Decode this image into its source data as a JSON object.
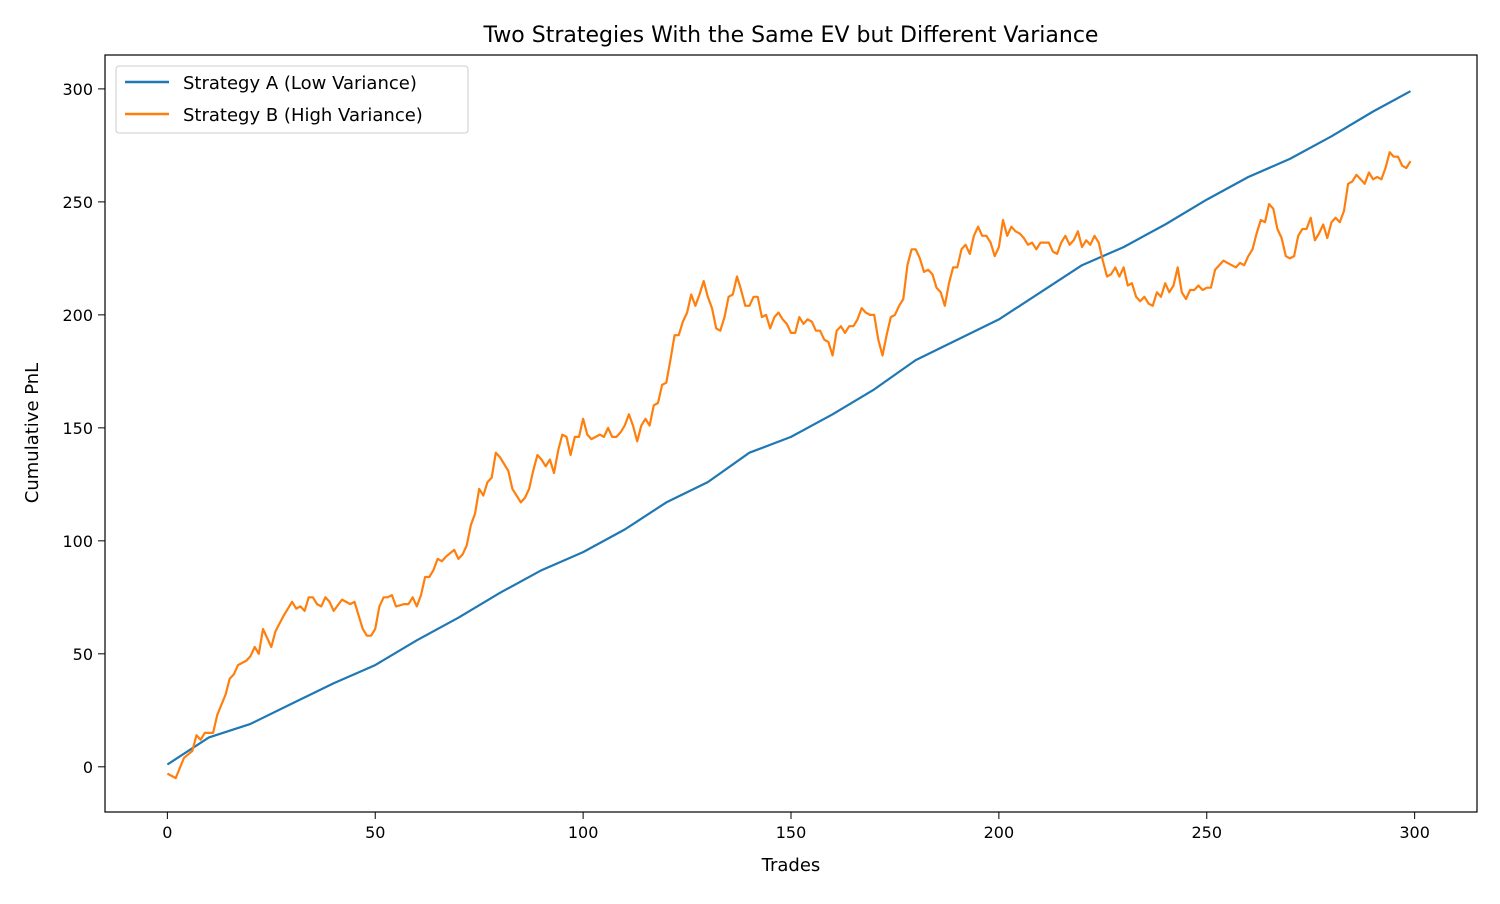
{
  "chart_data": {
    "type": "line",
    "title": "Two Strategies With the Same EV but Different Variance",
    "xlabel": "Trades",
    "ylabel": "Cumulative PnL",
    "xlim": [
      -15,
      315
    ],
    "ylim": [
      -20,
      315
    ],
    "xticks": [
      0,
      50,
      100,
      150,
      200,
      250,
      300
    ],
    "yticks": [
      0,
      50,
      100,
      150,
      200,
      250,
      300
    ],
    "grid": false,
    "legend_position": "top-left",
    "series": [
      {
        "name": "Strategy A (Low Variance)",
        "color": "#1f77b4",
        "x": [
          0,
          10,
          20,
          30,
          40,
          50,
          60,
          70,
          80,
          90,
          100,
          110,
          120,
          130,
          140,
          150,
          160,
          170,
          180,
          190,
          200,
          210,
          220,
          230,
          240,
          250,
          260,
          270,
          280,
          290,
          299
        ],
        "y": [
          1,
          13,
          19,
          28,
          37,
          45,
          56,
          66,
          77,
          87,
          95,
          105,
          117,
          126,
          139,
          146,
          156,
          167,
          180,
          189,
          198,
          210,
          222,
          230,
          240,
          251,
          261,
          269,
          279,
          290,
          299
        ]
      },
      {
        "name": "Strategy B (High Variance)",
        "color": "#ff7f0e",
        "x": [
          0,
          2,
          4,
          6,
          7,
          8,
          9,
          11,
          12,
          14,
          15,
          16,
          17,
          19,
          20,
          21,
          22,
          23,
          25,
          26,
          28,
          30,
          31,
          32,
          33,
          34,
          35,
          36,
          37,
          38,
          39,
          40,
          42,
          44,
          45,
          46,
          47,
          48,
          49,
          50,
          51,
          52,
          53,
          54,
          55,
          57,
          58,
          59,
          60,
          61,
          62,
          63,
          64,
          65,
          66,
          67,
          69,
          70,
          71,
          72,
          73,
          74,
          75,
          76,
          77,
          78,
          79,
          80,
          81,
          82,
          83,
          84,
          85,
          86,
          87,
          88,
          89,
          90,
          91,
          92,
          93,
          94,
          95,
          96,
          97,
          98,
          99,
          100,
          101,
          102,
          104,
          105,
          106,
          107,
          108,
          109,
          110,
          111,
          112,
          113,
          114,
          115,
          116,
          117,
          118,
          119,
          120,
          121,
          122,
          123,
          124,
          125,
          126,
          127,
          128,
          129,
          130,
          131,
          132,
          133,
          134,
          135,
          136,
          137,
          138,
          139,
          140,
          141,
          142,
          143,
          144,
          145,
          146,
          147,
          148,
          149,
          150,
          151,
          152,
          153,
          154,
          155,
          156,
          157,
          158,
          159,
          160,
          161,
          162,
          163,
          164,
          165,
          166,
          167,
          168,
          169,
          170,
          171,
          172,
          173,
          174,
          175,
          176,
          177,
          178,
          179,
          180,
          181,
          182,
          183,
          184,
          185,
          186,
          187,
          188,
          189,
          190,
          191,
          192,
          193,
          194,
          195,
          196,
          197,
          198,
          199,
          200,
          201,
          202,
          203,
          204,
          205,
          206,
          207,
          208,
          209,
          210,
          211,
          212,
          213,
          214,
          215,
          216,
          217,
          218,
          219,
          220,
          221,
          222,
          223,
          224,
          225,
          226,
          227,
          228,
          229,
          230,
          231,
          232,
          233,
          234,
          235,
          236,
          237,
          238,
          239,
          240,
          241,
          242,
          243,
          244,
          245,
          246,
          247,
          248,
          249,
          250,
          251,
          252,
          253,
          254,
          255,
          256,
          257,
          258,
          259,
          260,
          261,
          262,
          263,
          264,
          265,
          266,
          267,
          268,
          269,
          270,
          271,
          272,
          273,
          274,
          275,
          276,
          277,
          278,
          279,
          280,
          281,
          282,
          283,
          284,
          285,
          286,
          287,
          288,
          289,
          290,
          291,
          292,
          293,
          294,
          295,
          296,
          297,
          298,
          299
        ],
        "y": [
          -3,
          -5,
          4,
          7,
          14,
          12,
          15,
          15,
          23,
          32,
          39,
          41,
          45,
          47,
          49,
          53,
          50,
          61,
          53,
          60,
          67,
          73,
          70,
          71,
          69,
          75,
          75,
          72,
          71,
          75,
          73,
          69,
          74,
          72,
          73,
          67,
          61,
          58,
          58,
          61,
          71,
          75,
          75,
          76,
          71,
          72,
          72,
          75,
          71,
          76,
          84,
          84,
          87,
          92,
          91,
          93,
          96,
          92,
          94,
          98,
          107,
          112,
          123,
          120,
          126,
          128,
          139,
          137,
          134,
          131,
          123,
          120,
          117,
          119,
          123,
          131,
          138,
          136,
          133,
          136,
          130,
          140,
          147,
          146,
          138,
          146,
          146,
          154,
          147,
          145,
          147,
          146,
          150,
          146,
          146,
          148,
          151,
          156,
          151,
          144,
          151,
          154,
          151,
          160,
          161,
          169,
          170,
          180,
          191,
          191,
          197,
          201,
          209,
          204,
          209,
          215,
          208,
          203,
          194,
          193,
          199,
          208,
          209,
          217,
          211,
          204,
          204,
          208,
          208,
          199,
          200,
          194,
          199,
          201,
          198,
          196,
          192,
          192,
          199,
          196,
          198,
          197,
          193,
          193,
          189,
          188,
          182,
          193,
          195,
          192,
          195,
          195,
          198,
          203,
          201,
          200,
          200,
          189,
          182,
          191,
          199,
          200,
          204,
          207,
          222,
          229,
          229,
          225,
          219,
          220,
          218,
          212,
          210,
          204,
          214,
          221,
          221,
          229,
          231,
          227,
          235,
          239,
          235,
          235,
          232,
          226,
          230,
          242,
          235,
          239,
          237,
          236,
          234,
          231,
          232,
          229,
          232,
          232,
          232,
          228,
          227,
          232,
          235,
          231,
          233,
          237,
          230,
          233,
          231,
          235,
          232,
          224,
          217,
          218,
          221,
          217,
          221,
          213,
          214,
          208,
          206,
          208,
          205,
          204,
          210,
          208,
          214,
          210,
          213,
          221,
          210,
          207,
          211,
          211,
          213,
          211,
          212,
          212,
          220,
          222,
          224,
          223,
          222,
          221,
          223,
          222,
          226,
          229,
          236,
          242,
          241,
          249,
          247,
          238,
          234,
          226,
          225,
          226,
          235,
          238,
          238,
          243,
          233,
          236,
          240,
          234,
          241,
          243,
          241,
          246,
          258,
          259,
          262,
          260,
          258,
          263,
          260,
          261,
          260,
          265,
          272,
          270,
          270,
          266,
          265,
          268
        ]
      }
    ]
  }
}
